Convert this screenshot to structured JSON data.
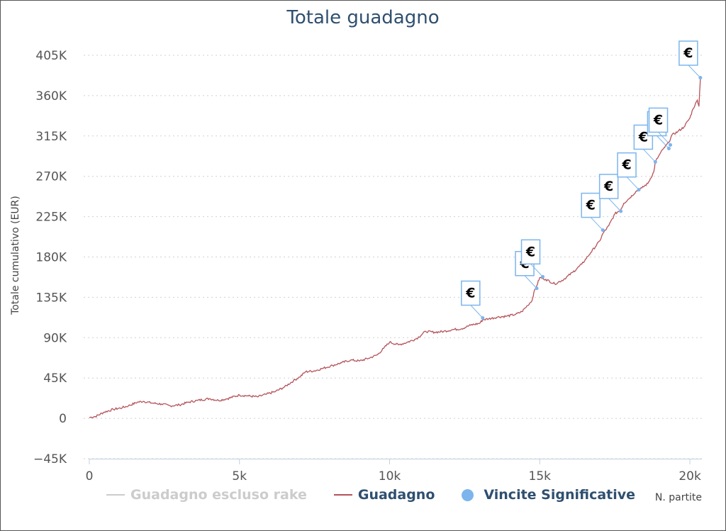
{
  "chart_data": {
    "type": "line",
    "title": "Totale guadagno",
    "xlabel": "N. partite",
    "ylabel": "Totale cumulativo (EUR)",
    "xlim": [
      0,
      20400
    ],
    "ylim": [
      -45000,
      405000
    ],
    "x_ticks": [
      0,
      5000,
      10000,
      15000,
      20000
    ],
    "x_tick_labels": [
      "0",
      "5k",
      "10k",
      "15k",
      "20k"
    ],
    "y_ticks": [
      -45000,
      0,
      45000,
      90000,
      135000,
      180000,
      225000,
      270000,
      315000,
      360000,
      405000
    ],
    "y_tick_labels": [
      "−45K",
      "0",
      "45K",
      "90K",
      "135K",
      "180K",
      "225K",
      "270K",
      "315K",
      "360K",
      "405K"
    ],
    "grid": "horizontal dotted",
    "legend_position": "bottom",
    "series": [
      {
        "name": "Guadagno escluso rake",
        "visible": false,
        "color": "#cccccc",
        "x": [],
        "y": []
      },
      {
        "name": "Guadagno",
        "visible": true,
        "color": "#b5535a",
        "x": [
          0,
          200,
          500,
          800,
          1100,
          1300,
          1600,
          1800,
          2100,
          2400,
          2700,
          3000,
          3300,
          3600,
          4000,
          4300,
          4600,
          5000,
          5300,
          5600,
          5900,
          6200,
          6500,
          6800,
          7000,
          7200,
          7500,
          7800,
          8100,
          8400,
          8700,
          9000,
          9300,
          9600,
          9800,
          10000,
          10300,
          10600,
          10900,
          11200,
          11500,
          11800,
          12100,
          12400,
          12700,
          13000,
          13100,
          13300,
          13600,
          13900,
          14200,
          14400,
          14600,
          14750,
          14800,
          14900,
          15000,
          15200,
          15500,
          15800,
          16100,
          16400,
          16700,
          17000,
          17100,
          17300,
          17500,
          17700,
          17800,
          18000,
          18200,
          18400,
          18600,
          18800,
          18850,
          18950,
          19100,
          19300,
          19400,
          19600,
          19800,
          20000,
          20100,
          20250,
          20300,
          20350
        ],
        "y": [
          1000,
          2000,
          7000,
          10000,
          12000,
          14000,
          18000,
          19000,
          17000,
          16000,
          14000,
          15000,
          18000,
          20000,
          22000,
          20000,
          22000,
          26000,
          25000,
          24000,
          27000,
          30000,
          35000,
          42000,
          46000,
          52000,
          53000,
          56000,
          59000,
          62000,
          65000,
          64000,
          67000,
          71000,
          78000,
          85000,
          82000,
          85000,
          89000,
          97000,
          96000,
          97000,
          99000,
          100000,
          104000,
          106000,
          110000,
          111000,
          113000,
          114000,
          116000,
          119000,
          126000,
          132000,
          140000,
          148000,
          157000,
          155000,
          150000,
          155000,
          163000,
          172000,
          185000,
          198000,
          206000,
          215000,
          228000,
          233000,
          240000,
          246000,
          253000,
          257000,
          262000,
          275000,
          286000,
          292000,
          300000,
          308000,
          316000,
          320000,
          325000,
          335000,
          345000,
          355000,
          348000,
          380000
        ]
      },
      {
        "name": "Vincite Significative",
        "type": "flags",
        "color": "#7cb5ec",
        "flag_text": "€",
        "x": [
          13100,
          14900,
          15100,
          17100,
          17700,
          18300,
          18850,
          19300,
          19350,
          20350
        ],
        "y": [
          112000,
          145000,
          158000,
          210000,
          231000,
          255000,
          286000,
          301000,
          305000,
          380000
        ]
      }
    ]
  }
}
